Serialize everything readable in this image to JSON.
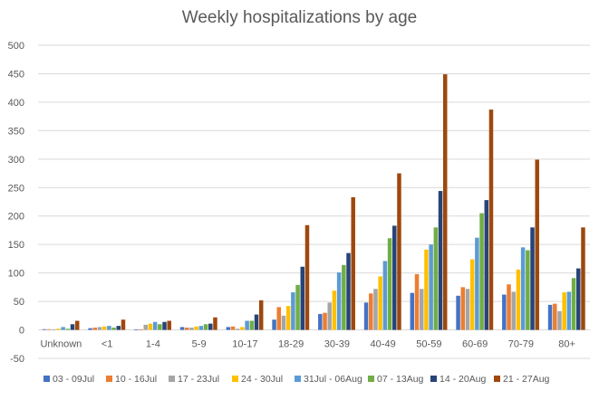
{
  "chart_data": {
    "type": "bar",
    "title": "Weekly hospitalizations by age",
    "xlabel": "",
    "ylabel": "",
    "ylim": [
      -50,
      500
    ],
    "yticks": [
      -50,
      0,
      50,
      100,
      150,
      200,
      250,
      300,
      350,
      400,
      450,
      500
    ],
    "grid": true,
    "legend_position": "bottom",
    "categories": [
      "Unknown",
      "<1",
      "1-4",
      "5-9",
      "10-17",
      "18-29",
      "30-39",
      "40-49",
      "50-59",
      "60-69",
      "70-79",
      "80+"
    ],
    "series": [
      {
        "name": "03 - 09Jul",
        "color": "#4472c4",
        "values": [
          0,
          3,
          1,
          5,
          5,
          18,
          28,
          48,
          65,
          60,
          62,
          44
        ]
      },
      {
        "name": "10 - 16Jul",
        "color": "#ed7d31",
        "values": [
          0,
          4,
          1,
          4,
          6,
          40,
          30,
          64,
          98,
          75,
          80,
          46
        ]
      },
      {
        "name": "17 - 23Jul",
        "color": "#a5a5a5",
        "values": [
          1,
          5,
          9,
          4,
          2,
          25,
          48,
          72,
          72,
          72,
          67,
          33
        ]
      },
      {
        "name": "24 - 30Jul",
        "color": "#ffc000",
        "values": [
          2,
          6,
          11,
          6,
          5,
          42,
          69,
          94,
          141,
          124,
          106,
          66
        ]
      },
      {
        "name": "31Jul - 06Aug",
        "color": "#5b9bd5",
        "values": [
          5,
          7,
          14,
          7,
          16,
          66,
          101,
          121,
          150,
          162,
          145,
          67
        ]
      },
      {
        "name": "07 - 13Aug",
        "color": "#70ad47",
        "values": [
          2,
          4,
          10,
          10,
          16,
          79,
          114,
          161,
          180,
          205,
          140,
          91
        ]
      },
      {
        "name": "14 - 20Aug",
        "color": "#264478",
        "values": [
          10,
          7,
          14,
          11,
          27,
          111,
          135,
          183,
          244,
          228,
          180,
          108
        ]
      },
      {
        "name": "21 - 27Aug",
        "color": "#9e480e",
        "values": [
          16,
          18,
          16,
          22,
          52,
          184,
          233,
          275,
          449,
          387,
          299,
          180
        ]
      }
    ]
  }
}
